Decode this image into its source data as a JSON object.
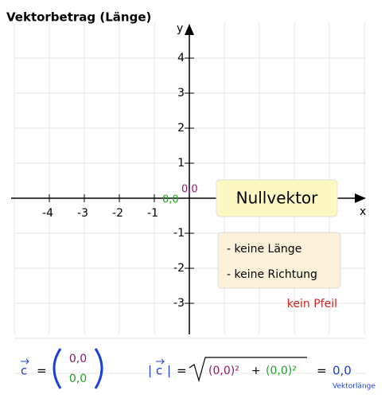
{
  "title": "Vektorbetrag (Länge)",
  "axes": {
    "x_label": "x",
    "y_label": "y",
    "xticks": [
      -4,
      -3,
      -2,
      -1
    ],
    "yticks": [
      4,
      3,
      2,
      1,
      -1,
      -2,
      -3
    ]
  },
  "origin_labels": {
    "x_component": "0,0",
    "y_component": "0,0"
  },
  "box_title": "Nullvektor",
  "box_items": [
    "- keine Länge",
    "- keine Richtung"
  ],
  "note": "kein Pfeil",
  "formula": {
    "vector_symbol": "c",
    "equals": "=",
    "components": [
      "0,0",
      "0,0"
    ],
    "norm_bar": "|",
    "radicand": [
      "(0,0)²",
      "+",
      "(0,0)²"
    ],
    "result": "0,0",
    "result_label": "Vektorlänge"
  }
}
